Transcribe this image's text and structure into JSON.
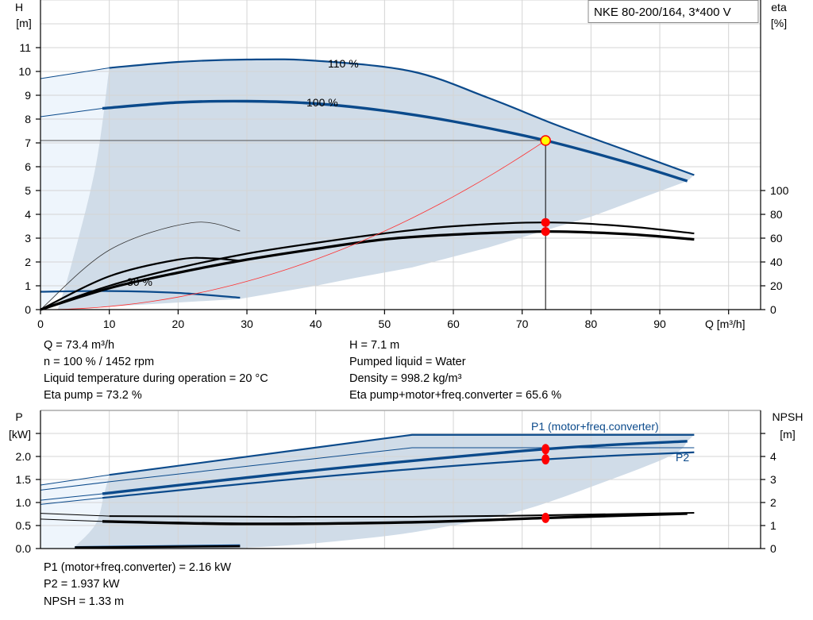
{
  "model_label": "NKE 80-200/164, 3*400 V",
  "colors": {
    "curve_blue": "#0b4a8b",
    "area_fill": "#d0dce8",
    "area_light": "#eef5fc",
    "duty_point": "#ff0000",
    "duty_point_yellow": "#ffff00",
    "system_curve": "#ff3030"
  },
  "info_top": {
    "left": [
      "Q = 73.4 m³/h",
      "n = 100 % / 1452 rpm",
      "Liquid temperature during operation = 20 °C",
      "Eta pump = 73.2 %"
    ],
    "right": [
      "H = 7.1 m",
      "Pumped liquid = Water",
      "Density = 998.2 kg/m³",
      "Eta pump+motor+freq.converter = 65.6 %"
    ]
  },
  "info_bottom": [
    "P1 (motor+freq.converter) = 2.16 kW",
    "P2 = 1.937 kW",
    "NPSH = 1.33 m"
  ],
  "chart_data": [
    {
      "type": "line",
      "xlabel": "Q [m³/h]",
      "ylabel": [
        "H",
        "[m]"
      ],
      "y2label": [
        "eta",
        "[%]"
      ],
      "xlim": [
        0,
        100
      ],
      "ylim": [
        0,
        12
      ],
      "y2lim": [
        0,
        100
      ],
      "xticks": [
        "0",
        "10",
        "20",
        "30",
        "40",
        "50",
        "60",
        "70",
        "80",
        "90"
      ],
      "yticks": [
        "0",
        "1",
        "2",
        "3",
        "4",
        "5",
        "6",
        "7",
        "8",
        "9",
        "10",
        "11"
      ],
      "y2ticks": [
        "0",
        "20",
        "40",
        "60",
        "80",
        "100"
      ],
      "grid": true,
      "curve_labels": {
        "speed_110": "110 %",
        "speed_100": "100 %",
        "speed_30": "30 %"
      },
      "series": [
        {
          "id": "H_110",
          "axis": "H",
          "points": [
            [
              0,
              9.7
            ],
            [
              10,
              10.15
            ],
            [
              20,
              10.4
            ],
            [
              30,
              10.5
            ],
            [
              40,
              10.45
            ],
            [
              54,
              10.0
            ],
            [
              65,
              8.9
            ],
            [
              75,
              7.75
            ],
            [
              85,
              6.7
            ],
            [
              95,
              5.65
            ]
          ]
        },
        {
          "id": "H_100",
          "axis": "H",
          "points": [
            [
              0,
              8.1
            ],
            [
              9,
              8.45
            ],
            [
              20,
              8.7
            ],
            [
              30,
              8.75
            ],
            [
              40,
              8.65
            ],
            [
              50,
              8.35
            ],
            [
              60,
              7.9
            ],
            [
              73.4,
              7.1
            ],
            [
              85,
              6.2
            ],
            [
              94,
              5.4
            ]
          ]
        },
        {
          "id": "H_30",
          "axis": "H",
          "points": [
            [
              0,
              0.75
            ],
            [
              10,
              0.78
            ],
            [
              20,
              0.7
            ],
            [
              29,
              0.5
            ]
          ]
        },
        {
          "id": "eta_pump_100",
          "axis": "eta",
          "points": [
            [
              0,
              0
            ],
            [
              10,
              20
            ],
            [
              20,
              35
            ],
            [
              30,
              47
            ],
            [
              40,
              56
            ],
            [
              50,
              64
            ],
            [
              60,
              70
            ],
            [
              73.4,
              73.2
            ],
            [
              85,
              70
            ],
            [
              95,
              64
            ]
          ]
        },
        {
          "id": "eta_total_100",
          "axis": "eta",
          "points": [
            [
              0,
              0
            ],
            [
              10,
              18
            ],
            [
              20,
              31
            ],
            [
              30,
              42
            ],
            [
              40,
              51
            ],
            [
              50,
              59
            ],
            [
              60,
              63
            ],
            [
              73.4,
              65.6
            ],
            [
              85,
              63.5
            ],
            [
              95,
              59
            ]
          ]
        },
        {
          "id": "eta_pump_30",
          "axis": "eta",
          "points": [
            [
              0,
              0
            ],
            [
              10,
              50
            ],
            [
              22,
              73
            ],
            [
              29,
              66
            ]
          ]
        },
        {
          "id": "eta_total_30",
          "axis": "eta",
          "points": [
            [
              0,
              0
            ],
            [
              10,
              28
            ],
            [
              20,
              42
            ],
            [
              25,
              43
            ],
            [
              29,
              41
            ]
          ]
        }
      ],
      "operating_point": {
        "Q": 73.4,
        "H": 7.1,
        "eta_pump": 73.2,
        "eta_total": 65.6
      }
    },
    {
      "type": "line",
      "ylabel": [
        "P",
        "[kW]"
      ],
      "y2label": [
        "NPSH",
        "[m]"
      ],
      "xlim": [
        0,
        100
      ],
      "ylim": [
        0,
        2.5
      ],
      "y2lim": [
        0,
        5
      ],
      "yticks": [
        "0.0",
        "0.5",
        "1.0",
        "1.5",
        "2.0"
      ],
      "y2ticks": [
        "0",
        "1",
        "2",
        "3",
        "4"
      ],
      "grid": true,
      "curve_labels": {
        "p1": "P1 (motor+freq.converter)",
        "p2": "P2"
      },
      "series": [
        {
          "id": "P1_110",
          "axis": "P",
          "points": [
            [
              0,
              1.38
            ],
            [
              10,
              1.6
            ],
            [
              54,
              2.47
            ],
            [
              95,
              2.47
            ]
          ]
        },
        {
          "id": "P2_110",
          "axis": "P",
          "points": [
            [
              0,
              1.27
            ],
            [
              10,
              1.45
            ],
            [
              54,
              2.19
            ],
            [
              95,
              2.19
            ]
          ]
        },
        {
          "id": "P1_100",
          "axis": "P",
          "points": [
            [
              0,
              1.05
            ],
            [
              9,
              1.19
            ],
            [
              40,
              1.7
            ],
            [
              73.4,
              2.16
            ],
            [
              94,
              2.33
            ]
          ]
        },
        {
          "id": "P2_100",
          "axis": "P",
          "points": [
            [
              0,
              0.96
            ],
            [
              9,
              1.1
            ],
            [
              40,
              1.55
            ],
            [
              73.4,
              1.937
            ],
            [
              95,
              2.09
            ]
          ]
        },
        {
          "id": "P1_30",
          "axis": "P",
          "points": [
            [
              5,
              0.03
            ],
            [
              29,
              0.07
            ]
          ]
        },
        {
          "id": "NPSH_110",
          "axis": "NPSH",
          "points": [
            [
              0,
              1.53
            ],
            [
              10,
              1.41
            ],
            [
              54,
              1.38
            ],
            [
              95,
              1.55
            ]
          ]
        },
        {
          "id": "NPSH_100",
          "axis": "NPSH",
          "points": [
            [
              0,
              1.28
            ],
            [
              9,
              1.18
            ],
            [
              30,
              1.07
            ],
            [
              55,
              1.15
            ],
            [
              73.4,
              1.33
            ],
            [
              94,
              1.52
            ]
          ]
        },
        {
          "id": "NPSH_30",
          "axis": "NPSH",
          "points": [
            [
              5,
              0.05
            ],
            [
              29,
              0.1
            ]
          ]
        }
      ],
      "operating_point": {
        "Q": 73.4,
        "P1": 2.16,
        "P2": 1.937,
        "NPSH": 1.33
      }
    }
  ]
}
